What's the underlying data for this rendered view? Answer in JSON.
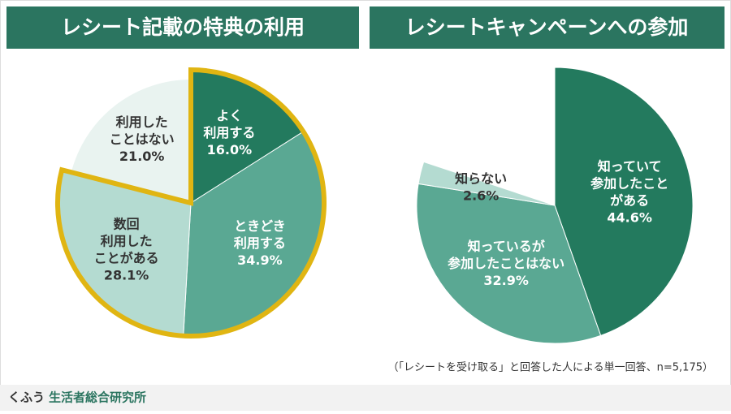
{
  "chart_data": [
    {
      "type": "pie",
      "title": "レシート記載の特典の利用",
      "categories": [
        [
          "よく",
          "利用する"
        ],
        [
          "ときどき",
          "利用する"
        ],
        [
          "数回",
          "利用した",
          "ことがある"
        ],
        [
          "利用した",
          "ことはない"
        ]
      ],
      "values": [
        16.0,
        34.9,
        28.1,
        21.0
      ],
      "value_labels": [
        "16.0%",
        "34.9%",
        "28.1%",
        "21.0%"
      ],
      "colors": [
        "#237a5e",
        "#5aa893",
        "#b4dbd1",
        "#e9f3f0"
      ],
      "label_colors": [
        "#ffffff",
        "#ffffff",
        "#333333",
        "#333333"
      ],
      "outlined": [
        true,
        true,
        true,
        false
      ],
      "outline_color": "#e0b512"
    },
    {
      "type": "pie",
      "title": "レシートキャンペーンへの参加",
      "categories": [
        [
          "知っていて",
          "参加したこと",
          "がある"
        ],
        [
          "知っているが",
          "参加したことはない"
        ],
        [
          "知らない"
        ]
      ],
      "values": [
        44.6,
        32.9,
        2.6
      ],
      "value_labels": [
        "44.6%",
        "32.9%",
        "2.6%"
      ],
      "colors": [
        "#237a5e",
        "#5aa893",
        "#b4dbd1"
      ],
      "label_colors": [
        "#ffffff",
        "#ffffff",
        "#333333"
      ]
    }
  ],
  "note": "（「レシートを受け取る」と回答した人による単一回答、n=5,175）",
  "footer": {
    "brand": "くふう",
    "org": "生活者総合研究所"
  }
}
